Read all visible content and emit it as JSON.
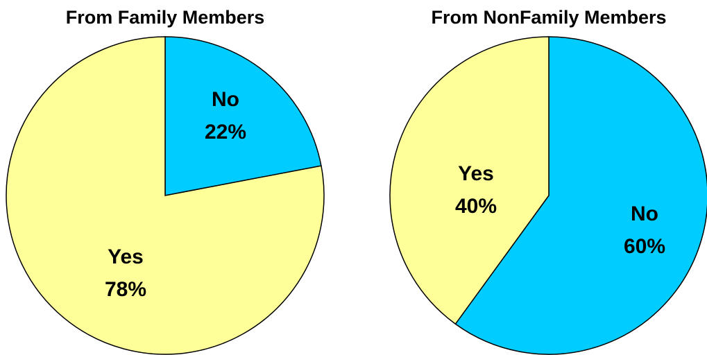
{
  "colors": {
    "yes": "#ffff99",
    "no": "#00ccff",
    "outline": "#000000",
    "text": "#000000"
  },
  "chart_data": [
    {
      "type": "pie",
      "title": "From Family Members",
      "slices": [
        {
          "label": "No",
          "value": 22,
          "display": "22%",
          "color_key": "no"
        },
        {
          "label": "Yes",
          "value": 78,
          "display": "78%",
          "color_key": "yes"
        }
      ]
    },
    {
      "type": "pie",
      "title": "From NonFamily Members",
      "slices": [
        {
          "label": "No",
          "value": 60,
          "display": "60%",
          "color_key": "no"
        },
        {
          "label": "Yes",
          "value": 40,
          "display": "40%",
          "color_key": "yes"
        }
      ]
    }
  ]
}
